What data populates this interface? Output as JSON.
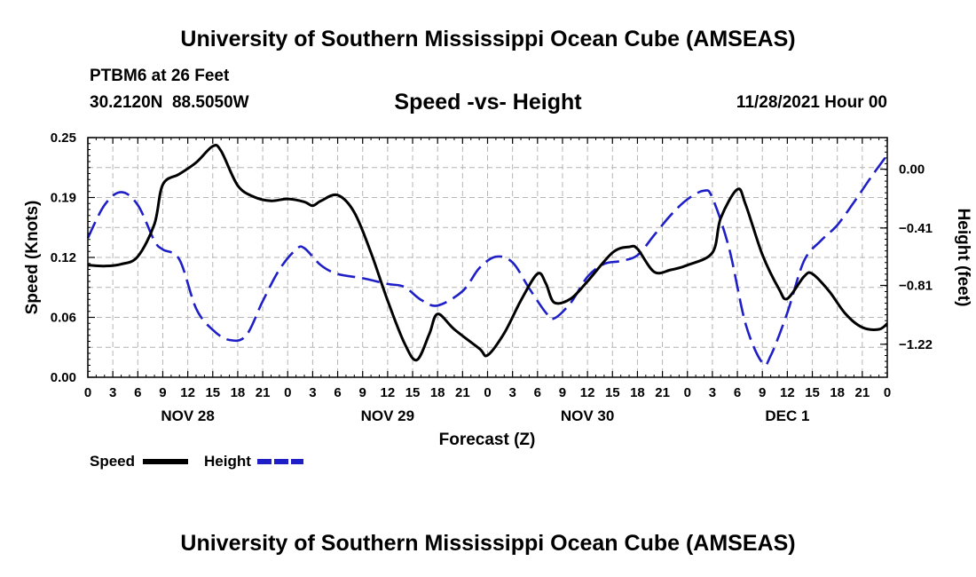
{
  "header": {
    "title": "University of Southern Mississippi Ocean Cube (AMSEAS)",
    "station": "PTBM6 at 26 Feet",
    "coords": "30.2120N  88.5050W",
    "subtitle": "Speed -vs- Height",
    "datestamp": "11/28/2021 Hour 00"
  },
  "footer": {
    "title": "University of Southern Mississippi Ocean Cube (AMSEAS)"
  },
  "chart_data": {
    "type": "line",
    "title": "Speed -vs- Height",
    "xlabel": "Forecast (Z)",
    "ylabel": "Speed (Knots)",
    "ylabel_right": "Height (feet)",
    "x_unit": "forecast hour from 11/28/2021 00Z",
    "xlim": [
      0,
      96
    ],
    "ylim": [
      0,
      0.25
    ],
    "ylim_right": [
      -1.45,
      0.22
    ],
    "x_tick_labels": [
      "0",
      "3",
      "6",
      "9",
      "12",
      "15",
      "18",
      "21",
      "0",
      "3",
      "6",
      "9",
      "12",
      "15",
      "18",
      "21",
      "0",
      "3",
      "6",
      "9",
      "12",
      "15",
      "18",
      "21",
      "0",
      "3",
      "6",
      "9",
      "12",
      "15",
      "18",
      "21",
      "0"
    ],
    "day_labels": [
      {
        "x": 12,
        "label": "NOV 28"
      },
      {
        "x": 36,
        "label": "NOV 29"
      },
      {
        "x": 60,
        "label": "NOV 30"
      },
      {
        "x": 84,
        "label": "DEC 1"
      }
    ],
    "y_ticks_left": [
      {
        "v": 0.0,
        "label": "0.00"
      },
      {
        "v": 0.0625,
        "label": "0.06"
      },
      {
        "v": 0.125,
        "label": "0.12"
      },
      {
        "v": 0.1875,
        "label": "0.19"
      },
      {
        "v": 0.25,
        "label": "0.25"
      }
    ],
    "y_ticks_right": [
      {
        "v": 0.0,
        "label": "0.00"
      },
      {
        "v": -0.41,
        "label": "-0.41"
      },
      {
        "v": -0.81,
        "label": "-0.81"
      },
      {
        "v": -1.22,
        "label": "-1.22"
      }
    ],
    "grid": true,
    "legend": "bottom-left",
    "series": [
      {
        "name": "Speed",
        "axis": "left",
        "color": "#000000",
        "dash": "solid",
        "points": [
          [
            0,
            0.117
          ],
          [
            2,
            0.116
          ],
          [
            4,
            0.118
          ],
          [
            6,
            0.126
          ],
          [
            8,
            0.16
          ],
          [
            9,
            0.201
          ],
          [
            11,
            0.212
          ],
          [
            13,
            0.224
          ],
          [
            15,
            0.241
          ],
          [
            16,
            0.236
          ],
          [
            18,
            0.2
          ],
          [
            20,
            0.188
          ],
          [
            22,
            0.184
          ],
          [
            24,
            0.186
          ],
          [
            26,
            0.183
          ],
          [
            27,
            0.179
          ],
          [
            28,
            0.184
          ],
          [
            30,
            0.19
          ],
          [
            32,
            0.172
          ],
          [
            34,
            0.13
          ],
          [
            36,
            0.08
          ],
          [
            38,
            0.036
          ],
          [
            39.5,
            0.018
          ],
          [
            41,
            0.045
          ],
          [
            42,
            0.066
          ],
          [
            44,
            0.05
          ],
          [
            47,
            0.03
          ],
          [
            48,
            0.023
          ],
          [
            50,
            0.046
          ],
          [
            52,
            0.08
          ],
          [
            54,
            0.108
          ],
          [
            55,
            0.098
          ],
          [
            56,
            0.078
          ],
          [
            58,
            0.082
          ],
          [
            60,
            0.1
          ],
          [
            63,
            0.13
          ],
          [
            65,
            0.136
          ],
          [
            66,
            0.134
          ],
          [
            68,
            0.11
          ],
          [
            70,
            0.112
          ],
          [
            72,
            0.117
          ],
          [
            75,
            0.13
          ],
          [
            76,
            0.166
          ],
          [
            78,
            0.196
          ],
          [
            79,
            0.18
          ],
          [
            81,
            0.128
          ],
          [
            83,
            0.092
          ],
          [
            84,
            0.082
          ],
          [
            86,
            0.105
          ],
          [
            87,
            0.108
          ],
          [
            89,
            0.09
          ],
          [
            91,
            0.066
          ],
          [
            93,
            0.052
          ],
          [
            95,
            0.05
          ],
          [
            96,
            0.056
          ]
        ]
      },
      {
        "name": "Height",
        "axis": "right",
        "color": "#1f1fc8",
        "dash": "dashed",
        "points": [
          [
            0,
            -0.48
          ],
          [
            2,
            -0.25
          ],
          [
            4,
            -0.16
          ],
          [
            6,
            -0.25
          ],
          [
            8,
            -0.5
          ],
          [
            9,
            -0.56
          ],
          [
            11,
            -0.63
          ],
          [
            13,
            -0.97
          ],
          [
            15,
            -1.12
          ],
          [
            17,
            -1.19
          ],
          [
            19,
            -1.16
          ],
          [
            21,
            -0.92
          ],
          [
            23,
            -0.7
          ],
          [
            25,
            -0.56
          ],
          [
            26,
            -0.55
          ],
          [
            28,
            -0.67
          ],
          [
            30,
            -0.73
          ],
          [
            33,
            -0.76
          ],
          [
            36,
            -0.8
          ],
          [
            38,
            -0.82
          ],
          [
            40,
            -0.91
          ],
          [
            42,
            -0.95
          ],
          [
            45,
            -0.85
          ],
          [
            47,
            -0.69
          ],
          [
            49,
            -0.61
          ],
          [
            51,
            -0.65
          ],
          [
            53,
            -0.83
          ],
          [
            55,
            -1.0
          ],
          [
            56,
            -1.04
          ],
          [
            58,
            -0.93
          ],
          [
            60,
            -0.75
          ],
          [
            62,
            -0.66
          ],
          [
            64,
            -0.64
          ],
          [
            66,
            -0.6
          ],
          [
            68,
            -0.46
          ],
          [
            70,
            -0.32
          ],
          [
            72,
            -0.21
          ],
          [
            74,
            -0.15
          ],
          [
            75,
            -0.2
          ],
          [
            77,
            -0.55
          ],
          [
            79,
            -1.08
          ],
          [
            81,
            -1.35
          ],
          [
            82,
            -1.3
          ],
          [
            84,
            -1.0
          ],
          [
            86,
            -0.64
          ],
          [
            88,
            -0.5
          ],
          [
            90,
            -0.39
          ],
          [
            92,
            -0.23
          ],
          [
            94,
            -0.06
          ],
          [
            96,
            0.1
          ]
        ]
      }
    ]
  },
  "legend": {
    "speed_label": "Speed",
    "height_label": "Height"
  }
}
